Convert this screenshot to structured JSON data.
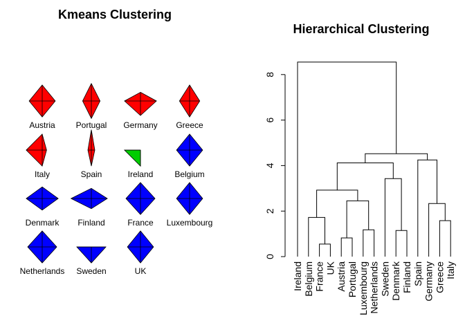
{
  "chart_data": [
    {
      "type": "other",
      "title": "Kmeans Clustering",
      "description_type": "star plot (segment diagrams) of countries colored by k-means cluster",
      "countries": [
        {
          "name": "Austria",
          "cluster": 1,
          "color": "#ff0000"
        },
        {
          "name": "Portugal",
          "cluster": 1,
          "color": "#ff0000"
        },
        {
          "name": "Germany",
          "cluster": 1,
          "color": "#ff0000"
        },
        {
          "name": "Greece",
          "cluster": 1,
          "color": "#ff0000"
        },
        {
          "name": "Italy",
          "cluster": 1,
          "color": "#ff0000"
        },
        {
          "name": "Spain",
          "cluster": 1,
          "color": "#ff0000"
        },
        {
          "name": "Ireland",
          "cluster": 2,
          "color": "#00cd00"
        },
        {
          "name": "Belgium",
          "cluster": 3,
          "color": "#0000ff"
        },
        {
          "name": "Denmark",
          "cluster": 3,
          "color": "#0000ff"
        },
        {
          "name": "Finland",
          "cluster": 3,
          "color": "#0000ff"
        },
        {
          "name": "France",
          "cluster": 3,
          "color": "#0000ff"
        },
        {
          "name": "Luxembourg",
          "cluster": 3,
          "color": "#0000ff"
        },
        {
          "name": "Netherlands",
          "cluster": 3,
          "color": "#0000ff"
        },
        {
          "name": "Sweden",
          "cluster": 3,
          "color": "#0000ff"
        },
        {
          "name": "UK",
          "cluster": 3,
          "color": "#0000ff"
        }
      ],
      "star_radii": [
        [
          0.55,
          0.45,
          0.55,
          0.45
        ],
        [
          0.6,
          0.3,
          0.6,
          0.3
        ],
        [
          0.3,
          0.55,
          0.5,
          0.55
        ],
        [
          0.55,
          0.35,
          0.55,
          0.35
        ],
        [
          0.55,
          0.15,
          0.55,
          0.55
        ],
        [
          0.7,
          0.12,
          0.55,
          0.12
        ],
        [
          0.0,
          0.0,
          0.55,
          0.55
        ],
        [
          0.55,
          0.45,
          0.55,
          0.45
        ],
        [
          0.4,
          0.55,
          0.4,
          0.55
        ],
        [
          0.35,
          0.55,
          0.35,
          0.7
        ],
        [
          0.55,
          0.5,
          0.55,
          0.5
        ],
        [
          0.55,
          0.45,
          0.55,
          0.45
        ],
        [
          0.55,
          0.5,
          0.55,
          0.5
        ],
        [
          0.0,
          0.5,
          0.55,
          0.5
        ],
        [
          0.55,
          0.45,
          0.55,
          0.45
        ]
      ]
    },
    {
      "type": "dendrogram",
      "title": "Hierarchical Clustering",
      "ylim": [
        0,
        8.6
      ],
      "yticks": [
        0,
        2,
        4,
        6,
        8
      ],
      "leaves": [
        "Ireland",
        "Belgium",
        "France",
        "UK",
        "Austria",
        "Portugal",
        "Luxembourg",
        "Netherlands",
        "Sweden",
        "Denmark",
        "Finland",
        "Spain",
        "Germany",
        "Greece",
        "Italy"
      ],
      "merges": [
        {
          "left": "UK",
          "right": "France",
          "height": 0.55
        },
        {
          "left": "Austria",
          "right": "Portugal",
          "height": 0.82
        },
        {
          "left": "Denmark",
          "right": "Finland",
          "height": 1.15
        },
        {
          "left": "Luxembourg",
          "right": "Netherlands",
          "height": 1.18
        },
        {
          "left": "Greece",
          "right": "Italy",
          "height": 1.58
        },
        {
          "left": "Belgium",
          "right": "m1",
          "height": 1.72
        },
        {
          "left": "Germany",
          "right": "m5",
          "height": 2.33
        },
        {
          "left": "m2",
          "right": "m4",
          "height": 2.45
        },
        {
          "left": "m6",
          "right": "m8",
          "height": 2.92
        },
        {
          "left": "Sweden",
          "right": "m3",
          "height": 3.43
        },
        {
          "left": "m9",
          "right": "m10",
          "height": 4.12
        },
        {
          "left": "Spain",
          "right": "m7",
          "height": 4.25
        },
        {
          "left": "m11",
          "right": "m12",
          "height": 4.52
        },
        {
          "left": "Ireland",
          "right": "m13",
          "height": 8.55
        }
      ]
    }
  ]
}
